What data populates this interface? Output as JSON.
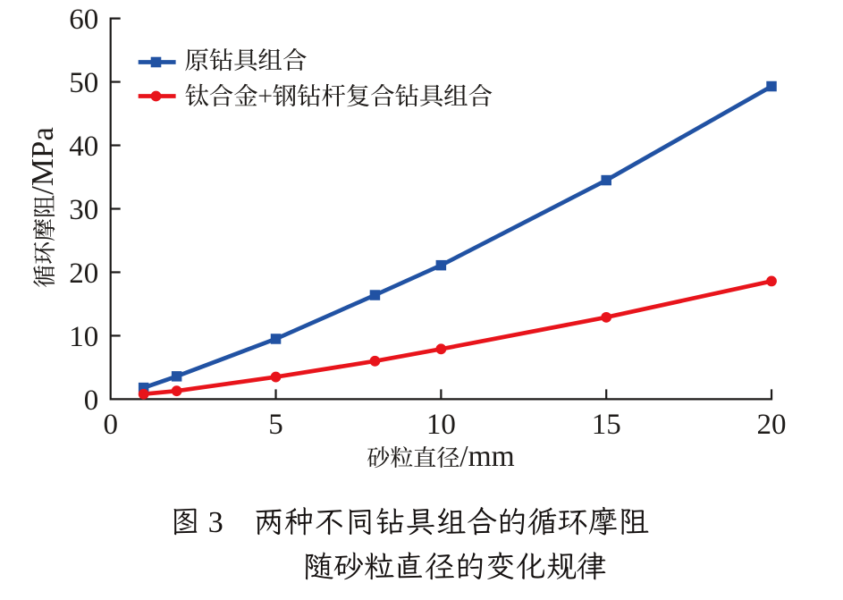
{
  "chart_data": {
    "type": "line",
    "x": [
      1,
      2,
      5,
      8,
      10,
      15,
      20
    ],
    "series": [
      {
        "name": "原钻具组合",
        "color": "#2152a3",
        "marker": "square",
        "values": [
          1.8,
          3.6,
          9.5,
          16.4,
          21.1,
          34.5,
          49.3
        ]
      },
      {
        "name": "钛合金+钢钻杆复合钻具组合",
        "color": "#e8141b",
        "marker": "circle",
        "values": [
          0.8,
          1.3,
          3.5,
          6.0,
          7.9,
          12.9,
          18.6
        ]
      }
    ],
    "xlabel": "砂粒直径/mm",
    "ylabel": "循环摩阻/MPa",
    "xlabel_cjk": "砂粒直径",
    "xlabel_unit": "/mm",
    "ylabel_cjk": "循环摩阻",
    "ylabel_unit": "/MPa",
    "xlim": [
      0,
      20
    ],
    "ylim": [
      0,
      60
    ],
    "xticks": [
      0,
      5,
      10,
      15,
      20
    ],
    "yticks": [
      0,
      10,
      20,
      30,
      40,
      50,
      60
    ],
    "grid": false,
    "legend_position": "upper-left"
  },
  "caption": {
    "line1": "图 3　两种不同钻具组合的循环摩阻",
    "line2": "随砂粒直径的变化规律"
  },
  "colors": {
    "background": "#ffffff",
    "axis": "#1c1a19",
    "text": "#1f1c1a",
    "series1": "#2152a3",
    "series2": "#e8141b"
  }
}
